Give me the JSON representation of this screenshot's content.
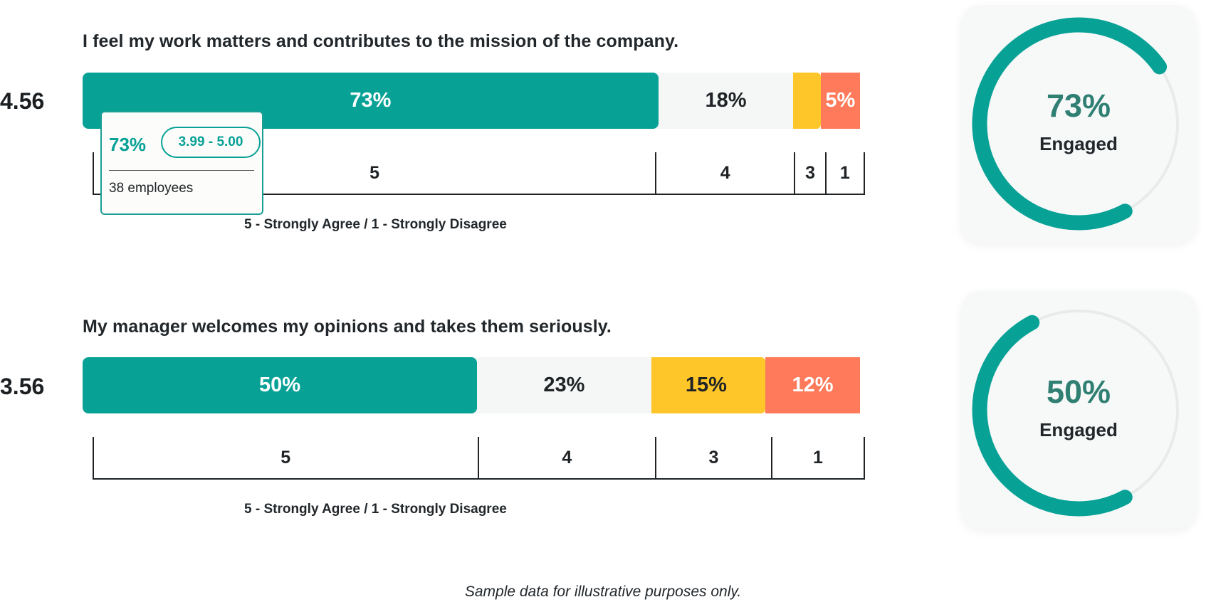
{
  "colors": {
    "teal": "#07a196",
    "white": "#f5f6f6",
    "yellow": "#ffc629",
    "orange": "#ff7a5a",
    "gauge_track": "#e9ebeb",
    "gauge_text": "#2f7f73"
  },
  "questions": [
    {
      "question": "I feel my work matters and contributes to the mission of the company.",
      "score": "4.56",
      "segments": [
        {
          "value": 73,
          "label": "73%",
          "color": "teal"
        },
        {
          "value": 18,
          "label": "18%",
          "color": "white"
        },
        {
          "value": 4,
          "label": "",
          "color": "yellow"
        },
        {
          "value": 5,
          "label": "5%",
          "color": "orange"
        }
      ],
      "scale_labels": [
        "5",
        "4",
        "3",
        "1"
      ],
      "legend": "5 - Strongly Agree / 1 - Strongly Disagree",
      "tooltip": {
        "pct": "73%",
        "range": "3.99 - 5.00",
        "count": "38 employees"
      },
      "gauge": {
        "value": 73,
        "pct_label": "73%",
        "label": "Engaged"
      }
    },
    {
      "question": "My manager welcomes my opinions and takes them seriously.",
      "score": "3.56",
      "segments": [
        {
          "value": 50,
          "label": "50%",
          "color": "teal"
        },
        {
          "value": 23,
          "label": "23%",
          "color": "white"
        },
        {
          "value": 15,
          "label": "15%",
          "color": "yellow"
        },
        {
          "value": 12,
          "label": "12%",
          "color": "orange"
        }
      ],
      "scale_labels": [
        "5",
        "4",
        "3",
        "1"
      ],
      "legend": "5 - Strongly Agree / 1 - Strongly Disagree",
      "gauge": {
        "value": 50,
        "pct_label": "50%",
        "label": "Engaged"
      }
    }
  ],
  "footnote": "Sample data for illustrative purposes only."
}
